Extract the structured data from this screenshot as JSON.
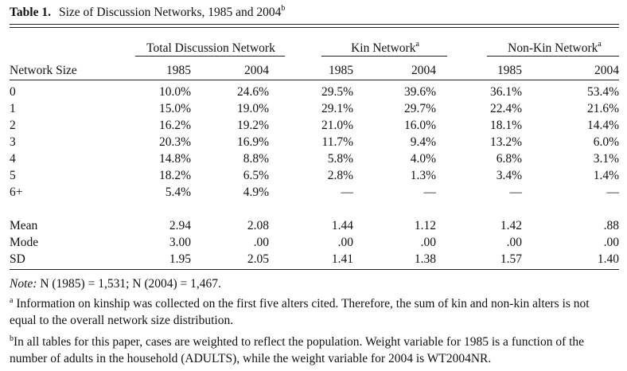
{
  "table": {
    "label": "Table 1.",
    "caption": "Size of Discussion Networks, 1985 and 2004",
    "caption_marker": "b",
    "groups": [
      {
        "label": "Total Discussion Network",
        "marker": ""
      },
      {
        "label": "Kin Network",
        "marker": "a"
      },
      {
        "label": "Non-Kin Network",
        "marker": "a"
      }
    ],
    "stub_header": "Network Size",
    "years": [
      "1985",
      "2004",
      "1985",
      "2004",
      "1985",
      "2004"
    ],
    "rows": [
      {
        "label": "0",
        "values": [
          "10.0%",
          "24.6%",
          "29.5%",
          "39.6%",
          "36.1%",
          "53.4%"
        ]
      },
      {
        "label": "1",
        "values": [
          "15.0%",
          "19.0%",
          "29.1%",
          "29.7%",
          "22.4%",
          "21.6%"
        ]
      },
      {
        "label": "2",
        "values": [
          "16.2%",
          "19.2%",
          "21.0%",
          "16.0%",
          "18.1%",
          "14.4%"
        ]
      },
      {
        "label": "3",
        "values": [
          "20.3%",
          "16.9%",
          "11.7%",
          "9.4%",
          "13.2%",
          "6.0%"
        ]
      },
      {
        "label": "4",
        "values": [
          "14.8%",
          "8.8%",
          "5.8%",
          "4.0%",
          "6.8%",
          "3.1%"
        ]
      },
      {
        "label": "5",
        "values": [
          "18.2%",
          "6.5%",
          "2.8%",
          "1.3%",
          "3.4%",
          "1.4%"
        ]
      },
      {
        "label": "6+",
        "values": [
          "5.4%",
          "4.9%",
          "—",
          "—",
          "—",
          "—"
        ]
      }
    ],
    "stats": [
      {
        "label": "Mean",
        "values": [
          "2.94",
          "2.08",
          "1.44",
          "1.12",
          "1.42",
          ".88"
        ]
      },
      {
        "label": "Mode",
        "values": [
          "3.00",
          ".00",
          ".00",
          ".00",
          ".00",
          ".00"
        ]
      },
      {
        "label": "SD",
        "values": [
          "1.95",
          "2.05",
          "1.41",
          "1.38",
          "1.57",
          "1.40"
        ]
      }
    ]
  },
  "notes": {
    "note_label": "Note:",
    "note_text": " N (1985) = 1,531; N (2004) = 1,467.",
    "a_marker": "a",
    "a_text": " Information on kinship was collected on the first five alters cited. Therefore, the sum of kin and non-kin alters is not equal to the overall network size distribution.",
    "b_marker": "b",
    "b_text": "In all tables for this paper, cases are weighted to reflect the population. Weight variable for 1985 is a function of the number of adults in the household (ADULTS), while the weight variable for 2004 is WT2004NR."
  }
}
